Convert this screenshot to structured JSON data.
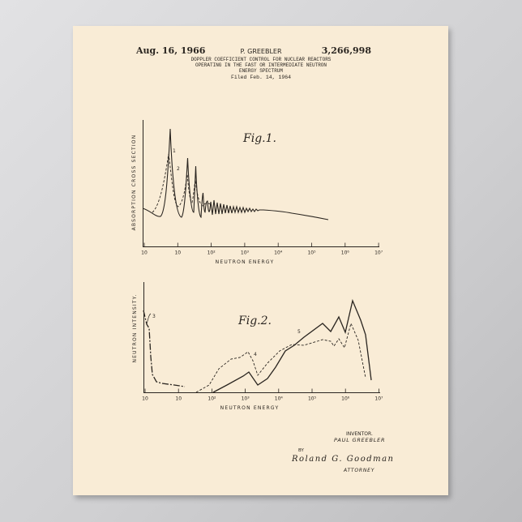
{
  "header": {
    "date": "Aug. 16, 1966",
    "inventor_short": "P. GREEBLER",
    "patent_number": "3,266,998",
    "title_lines": [
      "DOPPLER COEFFICIENT CONTROL FOR NUCLEAR REACTORS",
      "OPERATING IN THE FAST OR INTERMEDIATE NEUTRON",
      "ENERGY SPECTRUM"
    ],
    "filed": "Filed Feb. 14, 1964"
  },
  "fig1": {
    "label": "Fig.1.",
    "ylabel": "ABSORPTION CROSS SECTION",
    "xlabel": "NEUTRON ENERGY",
    "ticks": [
      "10",
      "10",
      "10²",
      "10³",
      "10⁴",
      "10⁵",
      "10⁶",
      "10⁷"
    ],
    "curve_labels": [
      "1",
      "2"
    ]
  },
  "fig2": {
    "label": "Fig.2.",
    "ylabel": "NEUTRON INTENSITY.",
    "xlabel": "NEUTRON ENERGY",
    "ticks": [
      "10",
      "10",
      "10²",
      "10³",
      "10⁴",
      "10⁵",
      "10⁶",
      "10⁷"
    ],
    "curve_labels": [
      "3",
      "4",
      "5"
    ]
  },
  "signature_block": {
    "inventor_label": "INVENTOR.",
    "inventor_name": "PAUL GREEBLER",
    "by": "BY",
    "signature": "Roland G. Goodman",
    "attorney_label": "ATTORNEY"
  },
  "colors": {
    "paper": "#f9ecd6",
    "ink": "#2a2520",
    "background": "#d6d6d8"
  }
}
